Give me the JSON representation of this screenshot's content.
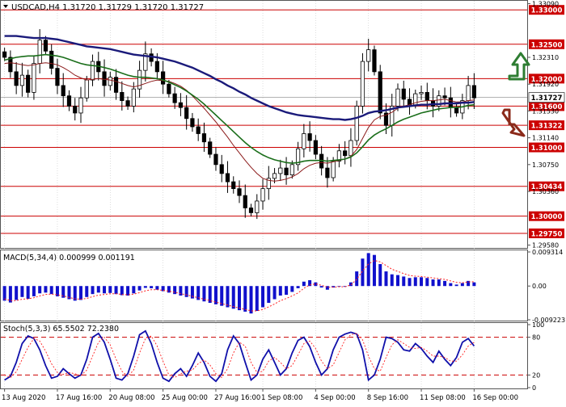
{
  "header": {
    "title": "USDCAD,H4  1.31720  1.31729  1.31720  1.31727",
    "macd_label": "MACD(5,34,4)  0.000999  0.001191",
    "stoch_label": "Stoch(5,3,3)  65.5502  72.2380"
  },
  "colors": {
    "background": "#ffffff",
    "grid": "#c8c8c8",
    "candle": "#000000",
    "level": "#cc0000",
    "ma_short": "#8b1a1a",
    "ma_mid": "#1a6e1a",
    "ma_long": "#1a1a7a",
    "macd_bar": "#1010cc",
    "macd_signal": "#ff2020",
    "stoch_main": "#1010aa",
    "stoch_signal": "#ff2020",
    "arrow_up": "#2e7d32",
    "arrow_down": "#8b2a1a"
  },
  "icons": {
    "arrow_up": "arrow-up-icon",
    "arrow_down": "arrow-down-icon"
  },
  "chart_data": [
    {
      "type": "candlestick",
      "panel": "price",
      "ylim": [
        1.2955,
        1.3312
      ],
      "price_axis": [
        "1.33090",
        "1.32310",
        "1.31920",
        "1.31530",
        "1.31140",
        "1.30750",
        "1.30360",
        "1.29580"
      ],
      "levels": [
        {
          "value": 1.33,
          "label": "1.33000"
        },
        {
          "value": 1.325,
          "label": "1.32500"
        },
        {
          "value": 1.32,
          "label": "1.32000"
        },
        {
          "value": 1.316,
          "label": "1.31600"
        },
        {
          "value": 1.31322,
          "label": "1.31322"
        },
        {
          "value": 1.31,
          "label": "1.31000"
        },
        {
          "value": 1.30434,
          "label": "1.30434"
        },
        {
          "value": 1.3,
          "label": "1.30000"
        },
        {
          "value": 1.2975,
          "label": "1.29750"
        }
      ],
      "current": {
        "value": 1.31727,
        "label": "1.31727"
      },
      "x_labels": [
        "13 Aug 2020",
        "17 Aug 16:00",
        "20 Aug 08:00",
        "25 Aug 00:00",
        "27 Aug 16:00",
        "1 Sep 08:00",
        "4 Sep 00:00",
        "8 Sep 16:00",
        "11 Sep 08:00",
        "16 Sep 00:00"
      ],
      "close": [
        1.3231,
        1.321,
        1.319,
        1.3205,
        1.318,
        1.3222,
        1.3256,
        1.324,
        1.3215,
        1.319,
        1.3175,
        1.316,
        1.315,
        1.3172,
        1.3198,
        1.3225,
        1.321,
        1.319,
        1.3202,
        1.318,
        1.3168,
        1.316,
        1.3185,
        1.3212,
        1.3236,
        1.3225,
        1.321,
        1.3192,
        1.3178,
        1.3165,
        1.3158,
        1.3142,
        1.313,
        1.312,
        1.3108,
        1.309,
        1.3075,
        1.3062,
        1.305,
        1.304,
        1.303,
        1.3012,
        1.3005,
        1.3022,
        1.304,
        1.3055,
        1.3062,
        1.307,
        1.306,
        1.3075,
        1.3098,
        1.312,
        1.311,
        1.309,
        1.307,
        1.3056,
        1.308,
        1.3095,
        1.3088,
        1.311,
        1.316,
        1.3225,
        1.3242,
        1.321,
        1.315,
        1.3132,
        1.316,
        1.3185,
        1.317,
        1.3162,
        1.3178,
        1.318,
        1.3168,
        1.316,
        1.3175,
        1.3172,
        1.3158,
        1.315,
        1.3168,
        1.319,
        1.3172
      ],
      "ma_short": [
        1.3222,
        1.3223,
        1.3222,
        1.322,
        1.3219,
        1.322,
        1.3222,
        1.3223,
        1.3222,
        1.322,
        1.3216,
        1.3211,
        1.3205,
        1.3201,
        1.3198,
        1.3199,
        1.32,
        1.3199,
        1.3198,
        1.3196,
        1.3193,
        1.319,
        1.3188,
        1.319,
        1.3193,
        1.3196,
        1.3198,
        1.3197,
        1.3196,
        1.3193,
        1.3189,
        1.3183,
        1.3175,
        1.3166,
        1.3157,
        1.3147,
        1.3137,
        1.3126,
        1.3115,
        1.3103,
        1.3092,
        1.3081,
        1.3071,
        1.3062,
        1.3055,
        1.3052,
        1.3051,
        1.3052,
        1.3054,
        1.3057,
        1.3062,
        1.3069,
        1.3074,
        1.3077,
        1.3078,
        1.3077,
        1.3079,
        1.3081,
        1.3083,
        1.3087,
        1.3097,
        1.3113,
        1.3129,
        1.314,
        1.3145,
        1.3147,
        1.3151,
        1.3157,
        1.316,
        1.3162,
        1.3165,
        1.3167,
        1.3168,
        1.3168,
        1.3169,
        1.317,
        1.3168,
        1.3166,
        1.3166,
        1.3168,
        1.3169
      ],
      "ma_mid": [
        1.3227,
        1.3229,
        1.3231,
        1.3232,
        1.3233,
        1.3233,
        1.3234,
        1.3235,
        1.3234,
        1.3233,
        1.3231,
        1.3228,
        1.3225,
        1.3222,
        1.322,
        1.3219,
        1.3218,
        1.3216,
        1.3214,
        1.3211,
        1.3208,
        1.3205,
        1.3203,
        1.3202,
        1.3202,
        1.3201,
        1.32,
        1.3198,
        1.3195,
        1.3191,
        1.3187,
        1.3182,
        1.3176,
        1.317,
        1.3163,
        1.3155,
        1.3147,
        1.3139,
        1.3131,
        1.3123,
        1.3115,
        1.3107,
        1.31,
        1.3094,
        1.3089,
        1.3085,
        1.3082,
        1.308,
        1.3078,
        1.3077,
        1.3078,
        1.308,
        1.3081,
        1.3081,
        1.3081,
        1.308,
        1.3081,
        1.3082,
        1.3083,
        1.3086,
        1.3092,
        1.3101,
        1.3111,
        1.3118,
        1.3123,
        1.3127,
        1.3132,
        1.3137,
        1.3141,
        1.3144,
        1.3147,
        1.315,
        1.3152,
        1.3154,
        1.3156,
        1.3157,
        1.3158,
        1.3158,
        1.3159,
        1.3161,
        1.3162
      ],
      "ma_long": [
        1.3262,
        1.3262,
        1.3262,
        1.3261,
        1.326,
        1.3259,
        1.3259,
        1.3259,
        1.3258,
        1.3257,
        1.3255,
        1.3253,
        1.3251,
        1.3249,
        1.3247,
        1.3246,
        1.3245,
        1.3244,
        1.3243,
        1.3241,
        1.3239,
        1.3237,
        1.3235,
        1.3234,
        1.3233,
        1.3232,
        1.3231,
        1.3229,
        1.3227,
        1.3225,
        1.3222,
        1.3219,
        1.3216,
        1.3212,
        1.3208,
        1.3204,
        1.3199,
        1.3195,
        1.319,
        1.3186,
        1.3181,
        1.3177,
        1.3172,
        1.3168,
        1.3164,
        1.316,
        1.3157,
        1.3154,
        1.3151,
        1.3149,
        1.3147,
        1.3146,
        1.3145,
        1.3144,
        1.3143,
        1.3142,
        1.3141,
        1.3141,
        1.314,
        1.3141,
        1.3143,
        1.3146,
        1.315,
        1.3152,
        1.3153,
        1.3154,
        1.3156,
        1.3158,
        1.3159,
        1.316,
        1.3161,
        1.3162,
        1.3162,
        1.3163,
        1.3163,
        1.3164,
        1.3164,
        1.3164,
        1.3165,
        1.3165,
        1.3166
      ]
    },
    {
      "type": "bar",
      "panel": "macd",
      "ylim": [
        -0.009223,
        0.009314
      ],
      "axis_labels": [
        "0.009314",
        "0.00",
        "-0.009223"
      ],
      "values": [
        -0.004,
        -0.0045,
        -0.0038,
        -0.003,
        -0.0035,
        -0.0028,
        -0.002,
        -0.0018,
        -0.0022,
        -0.0028,
        -0.0032,
        -0.0036,
        -0.004,
        -0.0038,
        -0.003,
        -0.0022,
        -0.0018,
        -0.002,
        -0.0019,
        -0.0022,
        -0.0025,
        -0.0026,
        -0.002,
        -0.0012,
        -0.0005,
        -0.0006,
        -0.001,
        -0.0014,
        -0.0018,
        -0.0022,
        -0.0026,
        -0.003,
        -0.0034,
        -0.0038,
        -0.0042,
        -0.0046,
        -0.005,
        -0.0054,
        -0.0058,
        -0.0062,
        -0.0066,
        -0.007,
        -0.0075,
        -0.0068,
        -0.0058,
        -0.0046,
        -0.0036,
        -0.0026,
        -0.0024,
        -0.0016,
        -0.0006,
        0.0012,
        0.0016,
        0.001,
        -0.0004,
        -0.001,
        -0.0004,
        0.0,
        -0.0002,
        0.001,
        0.004,
        0.0075,
        0.009,
        0.0085,
        0.006,
        0.004,
        0.0032,
        0.003,
        0.0026,
        0.0022,
        0.0024,
        0.0024,
        0.0022,
        0.0018,
        0.0018,
        0.0014,
        0.0008,
        0.0004,
        0.0008,
        0.0014,
        0.001
      ],
      "signal": [
        -0.0035,
        -0.004,
        -0.004,
        -0.0036,
        -0.0035,
        -0.0032,
        -0.0027,
        -0.0023,
        -0.0022,
        -0.0024,
        -0.0027,
        -0.0031,
        -0.0035,
        -0.0036,
        -0.0034,
        -0.0029,
        -0.0025,
        -0.0023,
        -0.0021,
        -0.0021,
        -0.0023,
        -0.0024,
        -0.0022,
        -0.0018,
        -0.0013,
        -0.001,
        -0.001,
        -0.0012,
        -0.0014,
        -0.0017,
        -0.0021,
        -0.0024,
        -0.0028,
        -0.0032,
        -0.0036,
        -0.004,
        -0.0044,
        -0.0048,
        -0.0052,
        -0.0056,
        -0.006,
        -0.0064,
        -0.0068,
        -0.0068,
        -0.0064,
        -0.0057,
        -0.0049,
        -0.004,
        -0.0034,
        -0.0027,
        -0.0019,
        -0.0006,
        0.0003,
        0.0006,
        0.0002,
        -0.0003,
        -0.0003,
        -0.0002,
        -0.0002,
        0.0003,
        0.0018,
        0.0041,
        0.006,
        0.007,
        0.0066,
        0.0056,
        0.0046,
        0.004,
        0.0034,
        0.0029,
        0.0027,
        0.0026,
        0.0024,
        0.0022,
        0.002,
        0.0018,
        0.0014,
        0.001,
        0.0009,
        0.0011,
        0.0012
      ]
    },
    {
      "type": "line",
      "panel": "stochastic",
      "ylim": [
        0,
        100
      ],
      "axis_labels": [
        "100",
        "80",
        "20",
        "0"
      ],
      "levels": [
        80,
        20
      ],
      "main": [
        12,
        18,
        40,
        70,
        82,
        78,
        60,
        35,
        15,
        18,
        30,
        22,
        15,
        20,
        45,
        80,
        86,
        72,
        45,
        15,
        12,
        22,
        50,
        84,
        90,
        70,
        40,
        15,
        10,
        22,
        30,
        18,
        35,
        55,
        40,
        18,
        10,
        22,
        60,
        82,
        70,
        40,
        12,
        20,
        45,
        60,
        40,
        20,
        30,
        55,
        75,
        80,
        65,
        40,
        20,
        30,
        60,
        80,
        85,
        88,
        85,
        60,
        12,
        20,
        45,
        80,
        78,
        72,
        60,
        58,
        70,
        62,
        50,
        40,
        58,
        45,
        35,
        48,
        72,
        78,
        66
      ],
      "signal": [
        20,
        16,
        25,
        45,
        64,
        78,
        74,
        58,
        38,
        24,
        21,
        24,
        22,
        19,
        28,
        50,
        72,
        80,
        68,
        45,
        26,
        18,
        28,
        55,
        78,
        82,
        66,
        42,
        20,
        16,
        22,
        26,
        28,
        38,
        44,
        36,
        22,
        16,
        30,
        55,
        72,
        66,
        40,
        24,
        26,
        42,
        48,
        40,
        30,
        35,
        52,
        70,
        74,
        62,
        42,
        30,
        36,
        56,
        76,
        84,
        86,
        76,
        50,
        30,
        26,
        48,
        68,
        76,
        70,
        64,
        62,
        64,
        58,
        50,
        50,
        48,
        42,
        42,
        52,
        66,
        72
      ]
    }
  ]
}
